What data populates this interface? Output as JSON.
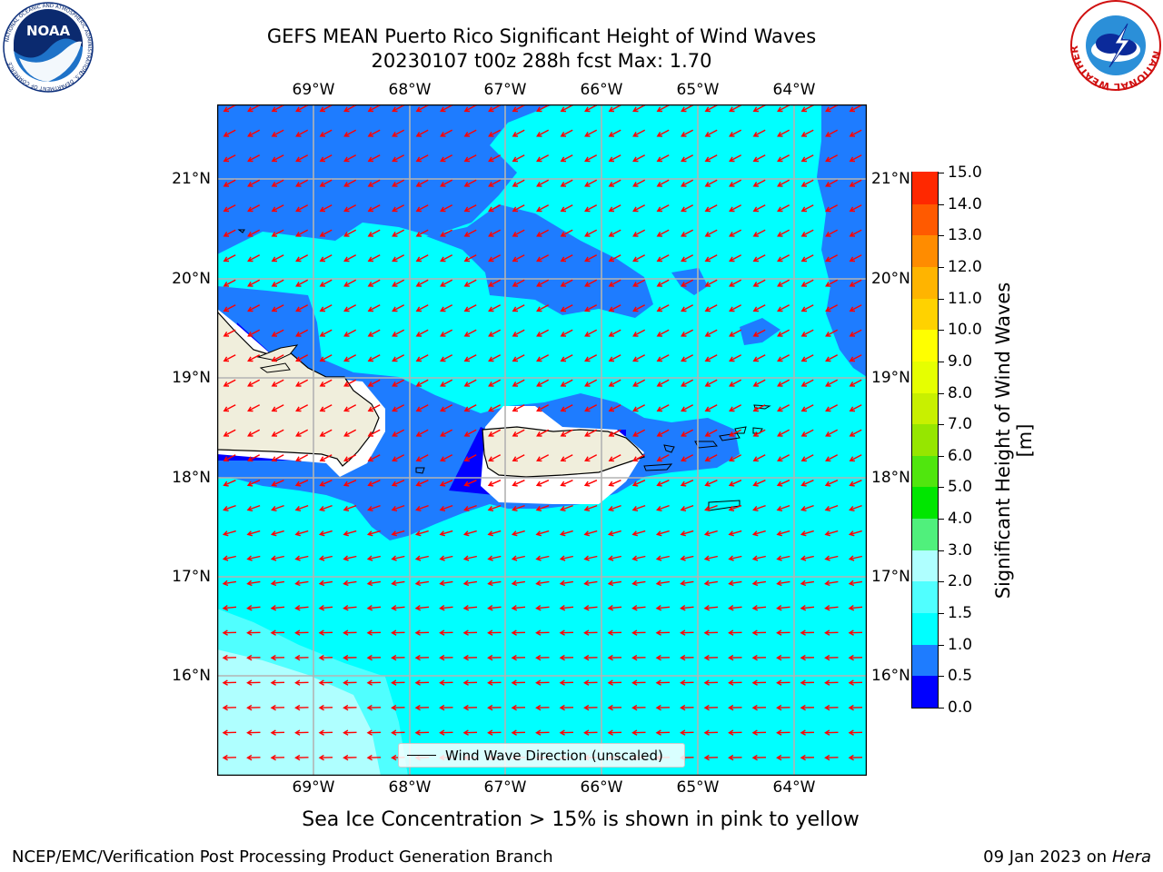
{
  "header": {
    "title_line1": "GEFS MEAN Puerto Rico Significant Height of Wind Waves",
    "title_line2": "20230107 t00z 288h fcst   Max: 1.70"
  },
  "logos": {
    "left": "NOAA",
    "left_ring": "NATIONAL OCEANIC AND ATMOSPHERIC ADMINISTRATION",
    "left_ring_bottom": "U.S. DEPARTMENT OF COMMERCE",
    "right_ring": "NATIONAL WEATHER SERVICE"
  },
  "map": {
    "lon_labels": [
      "69°W",
      "68°W",
      "67°W",
      "66°W",
      "65°W",
      "64°W"
    ],
    "lat_labels": [
      "21°N",
      "20°N",
      "19°N",
      "18°N",
      "17°N",
      "16°N"
    ],
    "vector_color": "#ff0000",
    "land_color": "#f0eedc"
  },
  "colorbar": {
    "title": "Significant Height of Wind Waves [m]",
    "ticks": [
      "0.0",
      "0.5",
      "1.0",
      "1.5",
      "2.0",
      "3.0",
      "4.0",
      "5.0",
      "6.0",
      "7.0",
      "8.0",
      "9.0",
      "10.0",
      "11.0",
      "12.0",
      "13.0",
      "14.0",
      "15.0"
    ],
    "colors": [
      "#0000ff",
      "#1e7cff",
      "#00ffff",
      "#50ffff",
      "#afffff",
      "#50f07c",
      "#00e600",
      "#50e60e",
      "#96e600",
      "#c8f000",
      "#e6ff00",
      "#ffff00",
      "#ffd200",
      "#ffb400",
      "#ff8c00",
      "#ff5a00",
      "#ff2800",
      "#ff0000"
    ]
  },
  "legend": {
    "label": "Wind Wave Direction (unscaled)"
  },
  "notes": {
    "sea_ice": "Sea Ice Concentration > 15% is shown in pink to yellow"
  },
  "footer": {
    "left": "NCEP/EMC/Verification Post Processing Product Generation Branch",
    "right_date": "09 Jan 2023 on ",
    "right_host": "Hera"
  }
}
